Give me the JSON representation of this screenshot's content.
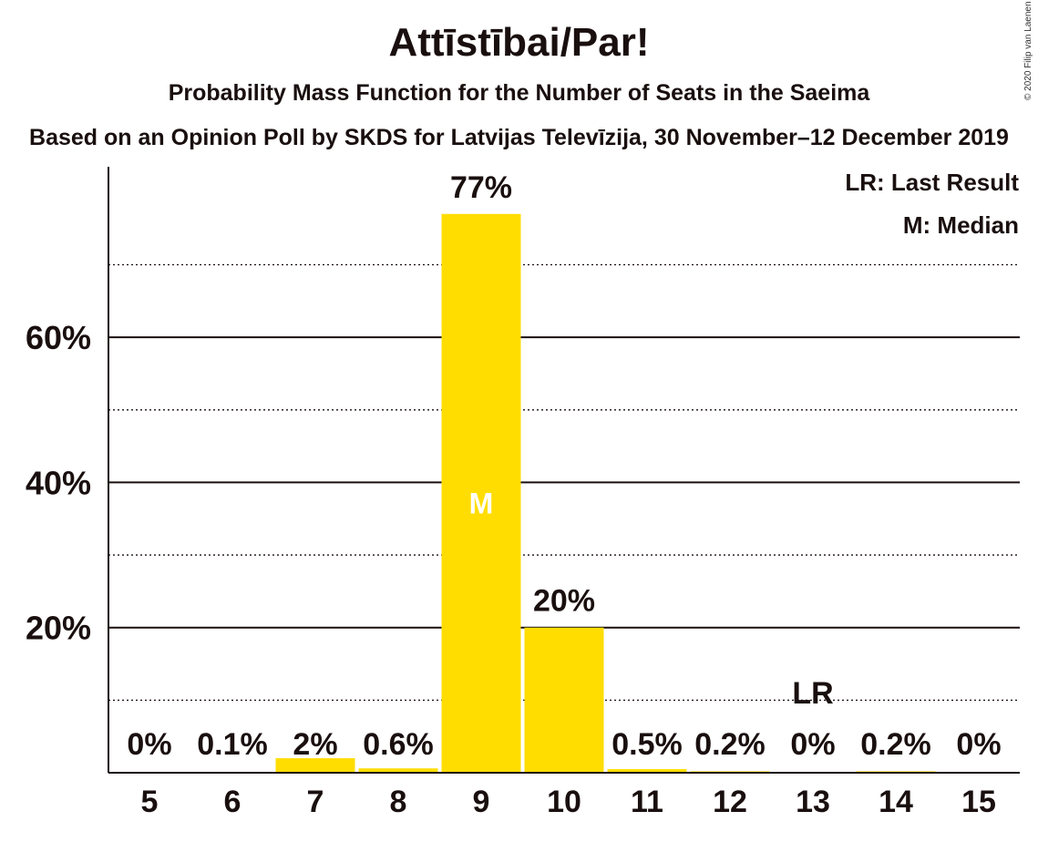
{
  "title": "Attīstībai/Par!",
  "subtitle": "Probability Mass Function for the Number of Seats in the Saeima",
  "subtitle2": "Based on an Opinion Poll by SKDS for Latvijas Televīzija, 30 November–12 December 2019",
  "copyright": "© 2020 Filip van Laenen",
  "legend": {
    "last_result": "LR: Last Result",
    "median": "M: Median"
  },
  "colors": {
    "bar": "#FFDD00",
    "text": "#1a0f0f",
    "median_text": "#ffffff"
  },
  "chart_data": {
    "type": "bar",
    "categories": [
      "5",
      "6",
      "7",
      "8",
      "9",
      "10",
      "11",
      "12",
      "13",
      "14",
      "15"
    ],
    "values": [
      0,
      0.1,
      2,
      0.6,
      77,
      20,
      0.5,
      0.2,
      0,
      0.2,
      0
    ],
    "value_labels": [
      "0%",
      "0.1%",
      "2%",
      "0.6%",
      "77%",
      "20%",
      "0.5%",
      "0.2%",
      "0%",
      "0.2%",
      "0%"
    ],
    "ylim": [
      0,
      83.5
    ],
    "yticks": [
      20,
      40,
      60
    ],
    "ytick_labels": [
      "20%",
      "40%",
      "60%"
    ],
    "minor_gridlines": [
      10,
      30,
      50,
      70
    ],
    "median_category": "9",
    "median_label": "M",
    "last_result_category": "13",
    "last_result_label": "LR",
    "grid": true
  }
}
